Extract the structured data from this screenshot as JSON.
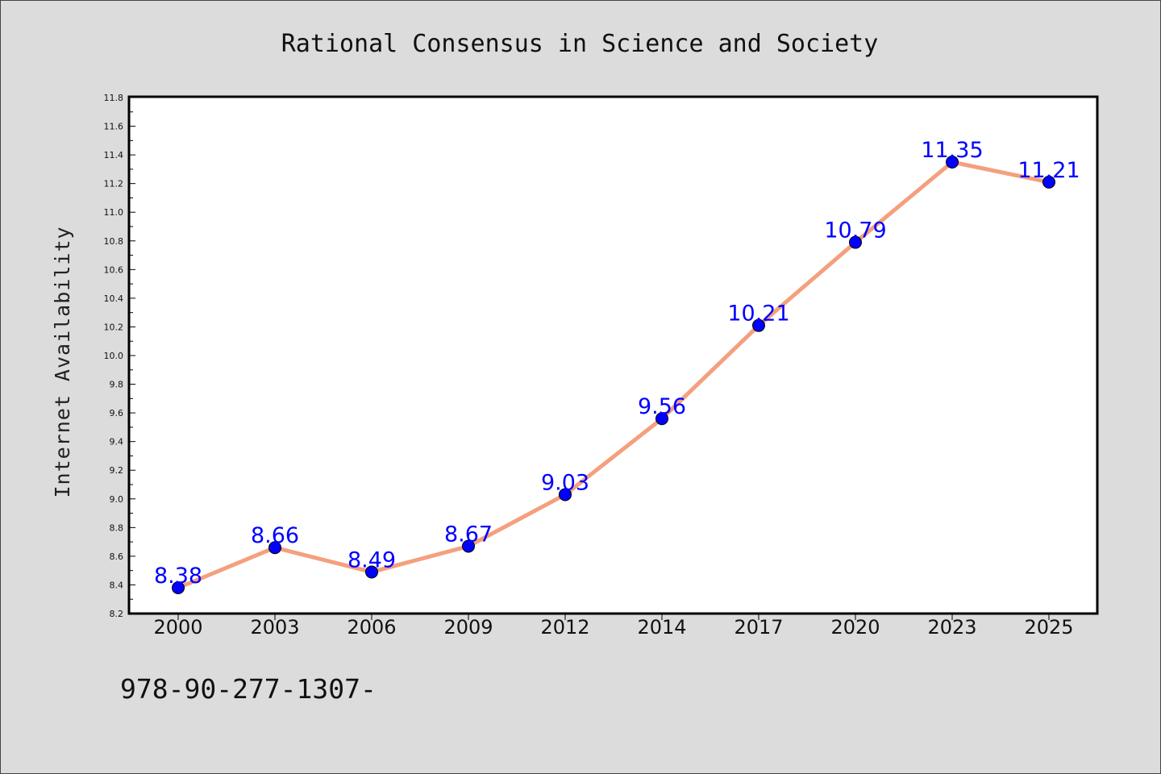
{
  "footer_text": "978-90-277-1307-",
  "chart_data": {
    "type": "line",
    "title": "Rational Consensus in Science and Society",
    "xlabel": "",
    "ylabel": "Internet Availability",
    "categories": [
      "2000",
      "2003",
      "2006",
      "2009",
      "2012",
      "2014",
      "2017",
      "2020",
      "2023",
      "2025"
    ],
    "series": [
      {
        "values": [
          8.38,
          8.66,
          8.49,
          8.67,
          9.03,
          9.56,
          10.21,
          10.79,
          11.35,
          11.21
        ],
        "data_labels": [
          "8.38",
          "8.66",
          "8.49",
          "8.67",
          "9.03",
          "9.56",
          "10.21",
          "10.79",
          "11.35",
          "11.21"
        ],
        "line_color": "#f4a07e",
        "marker_color": "#0000ff"
      }
    ],
    "yticks": [
      "8.2",
      "8.4",
      "8.6",
      "8.8",
      "9.0",
      "9.2",
      "9.4",
      "9.6",
      "9.8",
      "10.0",
      "10.2",
      "10.4",
      "10.6",
      "10.8",
      "11.0",
      "11.2",
      "11.4",
      "11.6",
      "11.8"
    ],
    "ylim": [
      8.2,
      11.8
    ],
    "grid": false,
    "legend": "none",
    "colors": {
      "background": "#dcdcdc",
      "plot_area": "#ffffff",
      "label_color": "#0000ff"
    }
  }
}
